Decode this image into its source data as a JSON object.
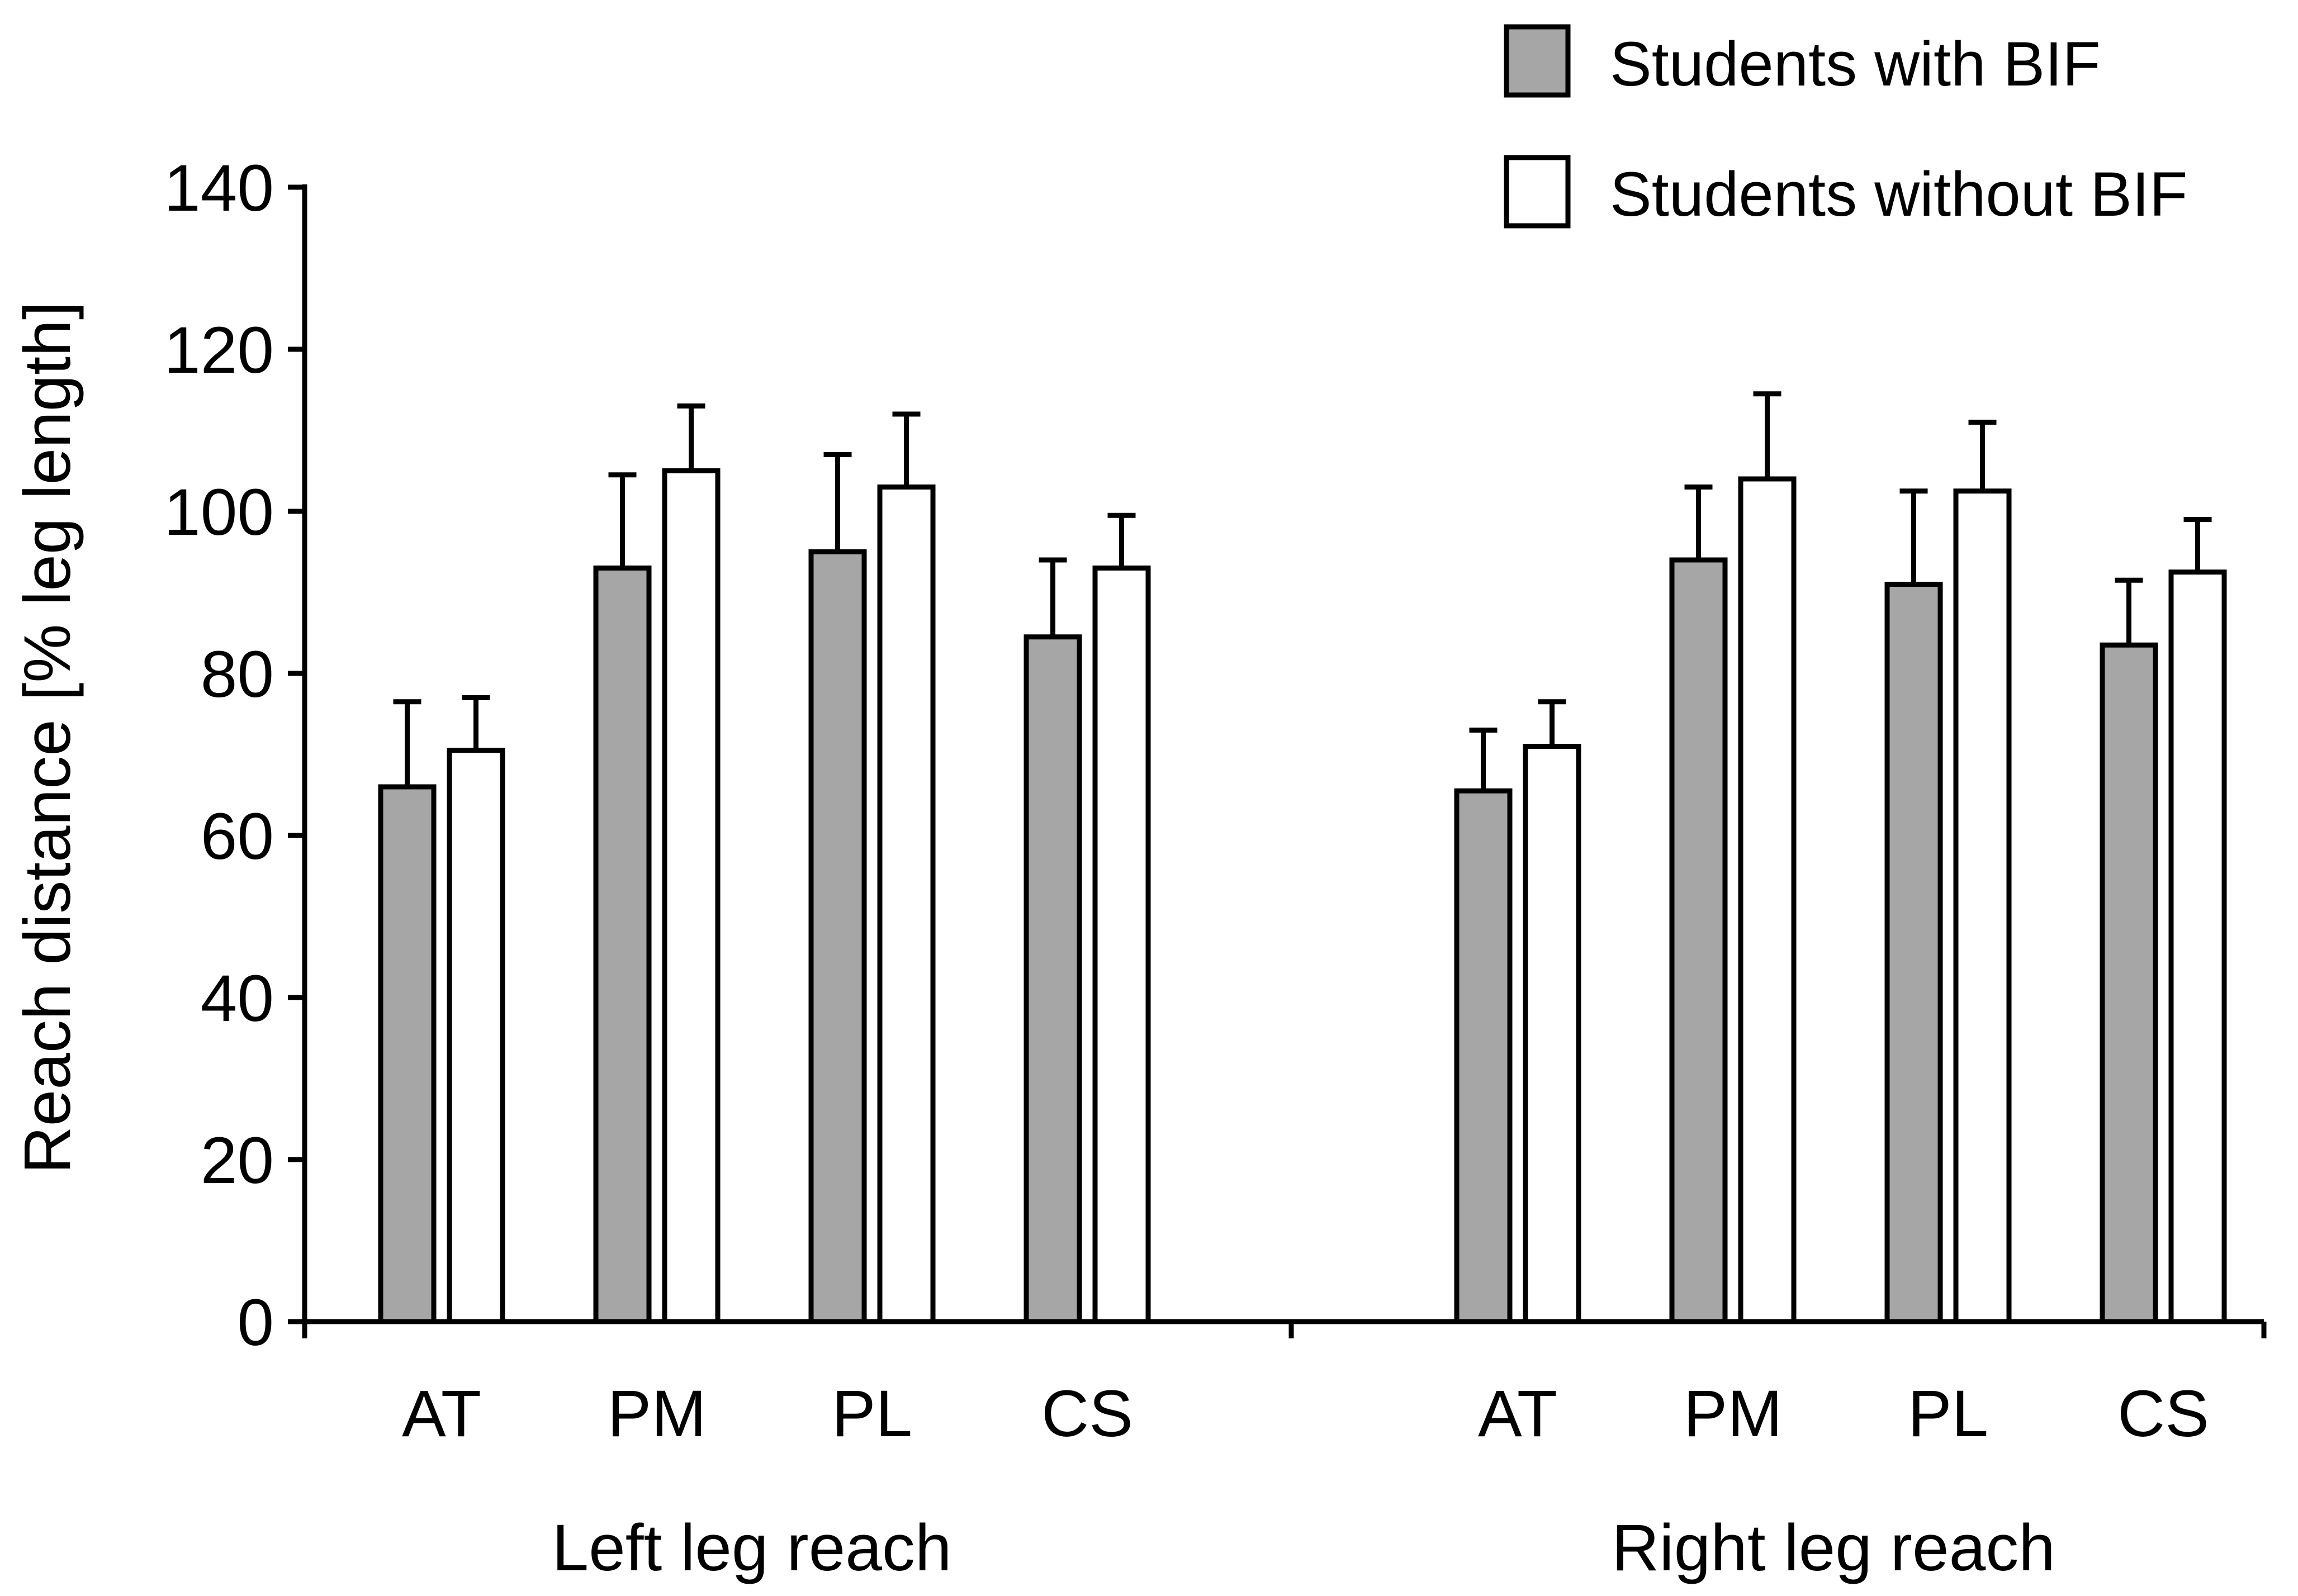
{
  "chart_data": {
    "type": "bar",
    "title": "",
    "xlabel": "",
    "ylabel": "Reach distance [% leg length]",
    "ylim": [
      0,
      140
    ],
    "yticks": [
      0,
      20,
      40,
      60,
      80,
      100,
      120,
      140
    ],
    "grid": false,
    "legend_position": "top-right",
    "groups": [
      {
        "label": "Left leg reach",
        "categories": [
          "AT",
          "PM",
          "PL",
          "CS"
        ]
      },
      {
        "label": "Right leg reach",
        "categories": [
          "AT",
          "PM",
          "PL",
          "CS"
        ]
      }
    ],
    "series": [
      {
        "name": "Students with BIF",
        "color": "#a6a6a6",
        "values": [
          66,
          93,
          95,
          84.5,
          65.5,
          94,
          91,
          83.5
        ],
        "errors": [
          10.5,
          11.5,
          12,
          9.5,
          7.5,
          9,
          11.5,
          8
        ]
      },
      {
        "name": "Students without BIF",
        "color": "#ffffff",
        "values": [
          70.5,
          105,
          103,
          93,
          71,
          104,
          102.5,
          92.5
        ],
        "errors": [
          6.5,
          8,
          9,
          6.5,
          5.5,
          10.5,
          8.5,
          6.5
        ]
      }
    ]
  }
}
